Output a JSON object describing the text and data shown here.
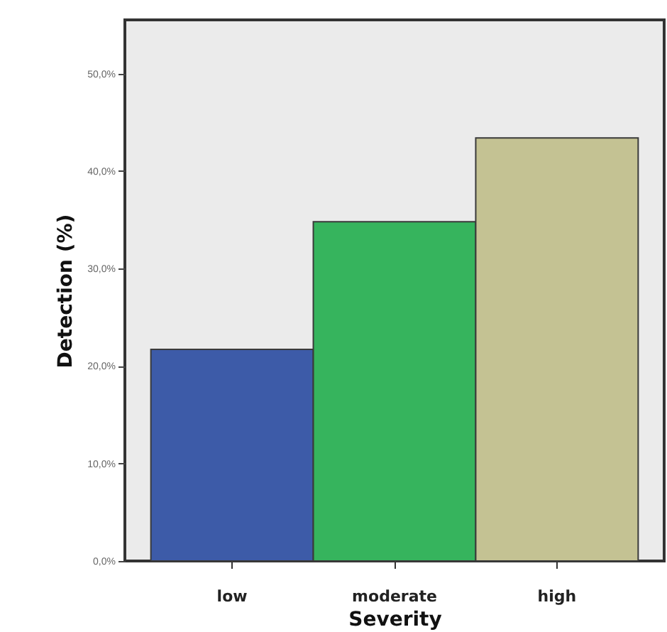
{
  "chart_data": {
    "type": "bar",
    "xlabel": "Severity",
    "ylabel": "Detection (%)",
    "categories": [
      "low",
      "moderate",
      "high"
    ],
    "values": [
      21.7,
      34.8,
      43.4
    ],
    "colors": [
      "#3d5ba8",
      "#36b45d",
      "#c4c293"
    ],
    "ylim": [
      0,
      55.5
    ],
    "yticks": [
      {
        "value": 0,
        "label": "0,0%"
      },
      {
        "value": 10,
        "label": "10,0%"
      },
      {
        "value": 20,
        "label": "20,0%"
      },
      {
        "value": 30,
        "label": "30,0%"
      },
      {
        "value": 40,
        "label": "40,0%"
      },
      {
        "value": 50,
        "label": "50,0%"
      }
    ],
    "grid": false
  }
}
